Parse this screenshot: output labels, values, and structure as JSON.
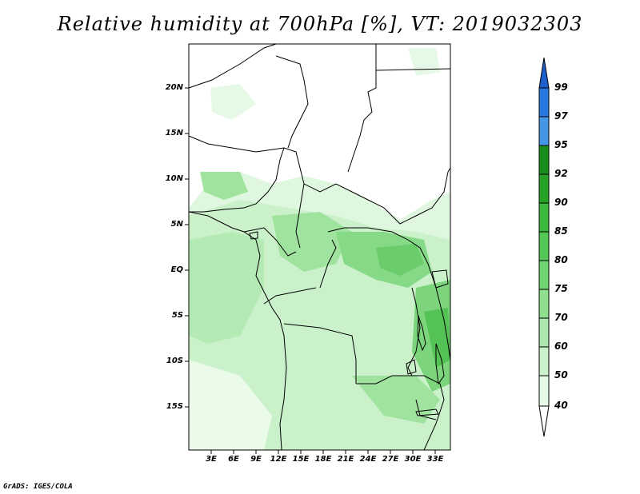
{
  "title": "Relative humidity at 700hPa [%], VT: 2019032303",
  "map": {
    "lat_labels": [
      "20N",
      "15N",
      "10N",
      "5N",
      "EQ",
      "5S",
      "10S",
      "15S"
    ],
    "lon_labels": [
      "3E",
      "6E",
      "9E",
      "12E",
      "15E",
      "18E",
      "21E",
      "24E",
      "27E",
      "30E",
      "33E"
    ]
  },
  "colorbar": {
    "levels": [
      "99",
      "97",
      "95",
      "92",
      "90",
      "85",
      "80",
      "75",
      "70",
      "60",
      "50",
      "40"
    ],
    "colors": [
      "#1e5fd0",
      "#2878e0",
      "#4696e6",
      "#1a8c1a",
      "#26a326",
      "#3cb83c",
      "#55c755",
      "#70d470",
      "#8ede8e",
      "#abe8ab",
      "#caf1ca",
      "#e8fae8"
    ]
  },
  "footer": "GrADS: IGES/COLA"
}
